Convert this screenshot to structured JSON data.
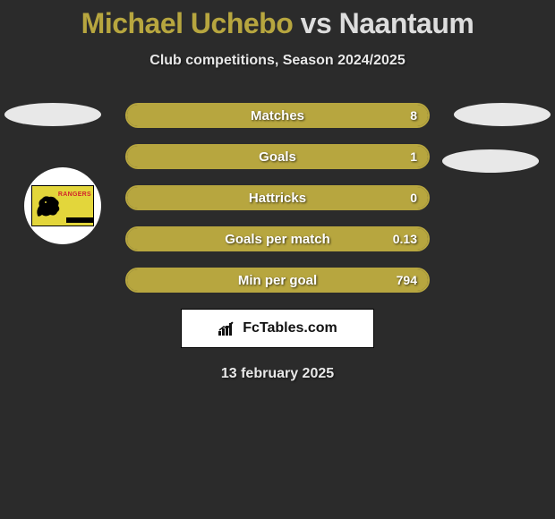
{
  "title": {
    "player1": "Michael Uchebo",
    "vs": "vs",
    "player2": "Naantaum"
  },
  "subtitle": "Club competitions, Season 2024/2025",
  "colors": {
    "accent": "#b7a63f",
    "text_light": "#e8e8e8",
    "background": "#2b2b2b",
    "white": "#ffffff",
    "badge_yellow": "#e3d63b",
    "badge_red": "#d1262b",
    "black": "#000000"
  },
  "bars": [
    {
      "label": "Matches",
      "value": "8",
      "fill_pct": 100
    },
    {
      "label": "Goals",
      "value": "1",
      "fill_pct": 100
    },
    {
      "label": "Hattricks",
      "value": "0",
      "fill_pct": 100
    },
    {
      "label": "Goals per match",
      "value": "0.13",
      "fill_pct": 100
    },
    {
      "label": "Min per goal",
      "value": "794",
      "fill_pct": 100
    }
  ],
  "badge_text": "RANGERS",
  "brand": "FcTables.com",
  "date": "13 february 2025"
}
